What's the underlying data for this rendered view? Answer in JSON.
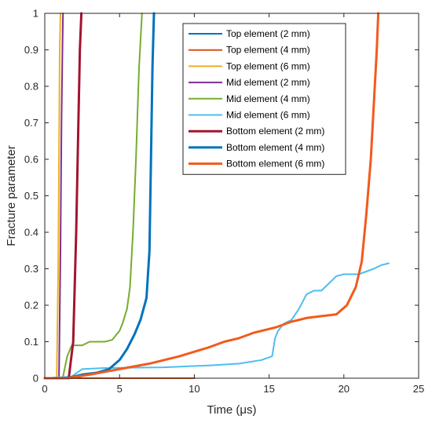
{
  "chart_data": {
    "type": "line",
    "xlabel": "Time (μs)",
    "ylabel": "Fracture parameter",
    "xlim": [
      0,
      25
    ],
    "ylim": [
      0,
      1
    ],
    "x_ticks": [
      0,
      5,
      10,
      15,
      20,
      25
    ],
    "y_ticks": [
      0,
      0.1,
      0.2,
      0.3,
      0.4,
      0.5,
      0.6,
      0.7,
      0.8,
      0.9,
      1
    ],
    "grid": false,
    "legend_position": "top-right",
    "series": [
      {
        "name": "Top element (2 mm)",
        "color": "#0072BD",
        "width": 2,
        "x": [
          0,
          10
        ],
        "y": [
          0,
          0
        ]
      },
      {
        "name": "Top element (4 mm)",
        "color": "#D95319",
        "width": 2,
        "x": [
          0,
          10
        ],
        "y": [
          0,
          0
        ]
      },
      {
        "name": "Top element (6 mm)",
        "color": "#EDB120",
        "width": 2,
        "x": [
          0,
          0.8,
          0.9,
          0.95,
          1.0,
          1.05
        ],
        "y": [
          0,
          0,
          0.3,
          0.6,
          0.9,
          1.0
        ]
      },
      {
        "name": "Mid element (2 mm)",
        "color": "#7E2F8E",
        "width": 2,
        "x": [
          0,
          0.95,
          1.05,
          1.12,
          1.18,
          1.22
        ],
        "y": [
          0,
          0,
          0.35,
          0.7,
          0.9,
          1.0
        ]
      },
      {
        "name": "Mid element (4 mm)",
        "color": "#77AC30",
        "width": 2,
        "x": [
          0,
          1.2,
          1.5,
          1.8,
          2.5,
          3.0,
          4.0,
          4.5,
          5.0,
          5.2,
          5.5,
          5.7,
          5.9,
          6.1,
          6.3,
          6.5
        ],
        "y": [
          0,
          0,
          0.06,
          0.09,
          0.09,
          0.1,
          0.1,
          0.105,
          0.13,
          0.15,
          0.19,
          0.25,
          0.4,
          0.6,
          0.85,
          1.0
        ]
      },
      {
        "name": "Mid element (6 mm)",
        "color": "#4DBEEE",
        "width": 2,
        "x": [
          0,
          1.8,
          2.5,
          4.0,
          8.0,
          11.0,
          13.0,
          14.5,
          15.2,
          15.4,
          15.6,
          16.0,
          16.5,
          17.0,
          17.5,
          18.0,
          18.5,
          19.0,
          19.5,
          20.0,
          21.0,
          22.0,
          22.5,
          23.0
        ],
        "y": [
          0,
          0.005,
          0.025,
          0.028,
          0.03,
          0.035,
          0.04,
          0.05,
          0.06,
          0.11,
          0.13,
          0.15,
          0.16,
          0.19,
          0.23,
          0.24,
          0.24,
          0.26,
          0.28,
          0.285,
          0.285,
          0.3,
          0.31,
          0.315
        ]
      },
      {
        "name": "Bottom element (2 mm)",
        "color": "#A2142F",
        "width": 3,
        "x": [
          0,
          1.6,
          1.9,
          2.1,
          2.25,
          2.35,
          2.45
        ],
        "y": [
          0,
          0,
          0.1,
          0.4,
          0.7,
          0.9,
          1.0
        ]
      },
      {
        "name": "Bottom element (4 mm)",
        "color": "#0072BD",
        "width": 3,
        "x": [
          0,
          1.5,
          2.5,
          3.5,
          4.3,
          5.0,
          5.5,
          6.0,
          6.4,
          6.8,
          7.0,
          7.1,
          7.2,
          7.3
        ],
        "y": [
          0,
          0,
          0.01,
          0.015,
          0.025,
          0.05,
          0.08,
          0.12,
          0.16,
          0.22,
          0.35,
          0.6,
          0.85,
          1.0
        ]
      },
      {
        "name": "Bottom element (6 mm)",
        "color": "#F25A1D",
        "width": 3,
        "x": [
          0,
          1.5,
          3.0,
          5.0,
          7.0,
          9.0,
          11.0,
          12.0,
          13.0,
          14.0,
          15.5,
          16.5,
          17.5,
          18.5,
          19.5,
          20.2,
          20.8,
          21.2,
          21.5,
          21.8,
          22.0,
          22.2,
          22.3
        ],
        "y": [
          0,
          0,
          0.01,
          0.025,
          0.04,
          0.06,
          0.085,
          0.1,
          0.11,
          0.125,
          0.14,
          0.155,
          0.165,
          0.17,
          0.175,
          0.2,
          0.25,
          0.32,
          0.45,
          0.6,
          0.75,
          0.9,
          1.0
        ]
      }
    ]
  }
}
